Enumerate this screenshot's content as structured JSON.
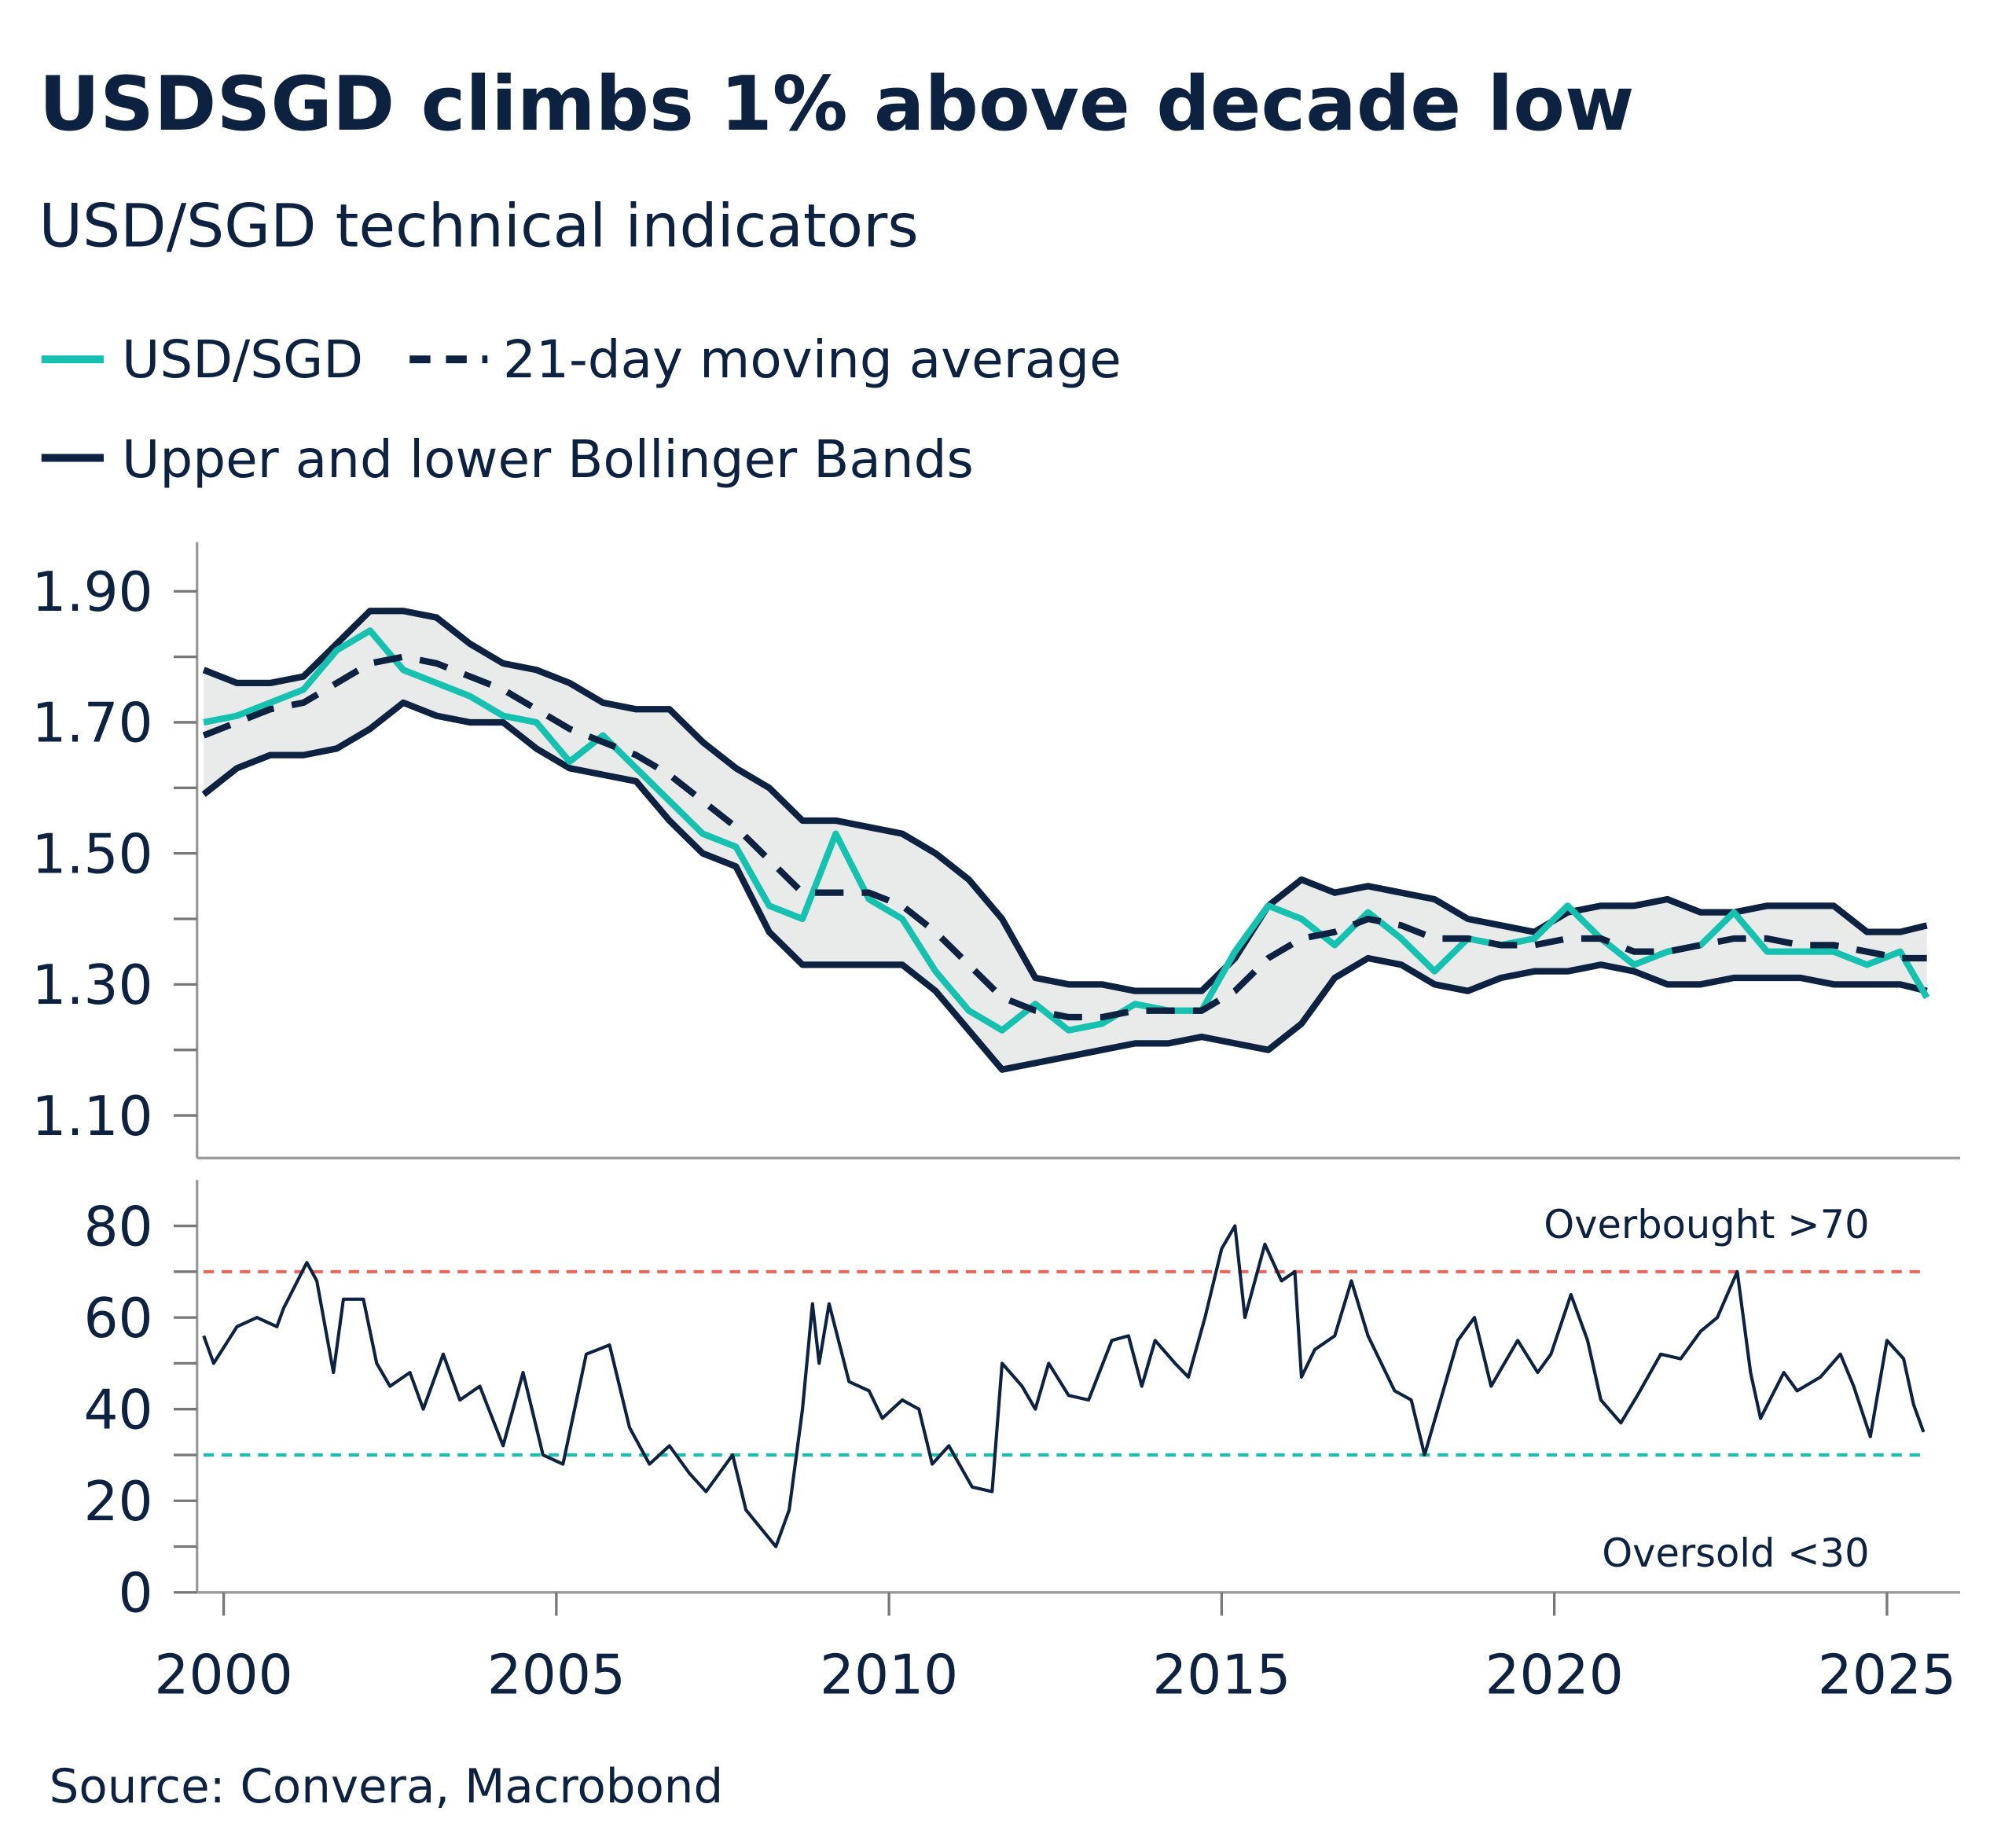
{
  "chart_data": [
    {
      "type": "line",
      "title": "USDSGD climbs 1% above decade low",
      "subtitle": "USD/SGD technical indicators",
      "source": "Source: Convera, Macrobond",
      "x": [
        1999.7,
        2000.2,
        2000.7,
        2001.2,
        2001.7,
        2002.2,
        2002.7,
        2003.2,
        2003.7,
        2004.2,
        2004.7,
        2005.2,
        2005.7,
        2006.2,
        2006.7,
        2007.2,
        2007.7,
        2008.2,
        2008.7,
        2009.2,
        2009.7,
        2010.2,
        2010.7,
        2011.2,
        2011.7,
        2012.2,
        2012.7,
        2013.2,
        2013.7,
        2014.2,
        2014.7,
        2015.2,
        2015.7,
        2016.2,
        2016.7,
        2017.2,
        2017.7,
        2018.2,
        2018.7,
        2019.2,
        2019.7,
        2020.2,
        2020.7,
        2021.2,
        2021.7,
        2022.2,
        2022.7,
        2023.2,
        2023.7,
        2024.2,
        2024.7,
        2025.2,
        2025.6
      ],
      "series": [
        {
          "name": "USD/SGD",
          "color": "#17c1b0",
          "dash": false,
          "values": [
            1.7,
            1.71,
            1.73,
            1.75,
            1.81,
            1.84,
            1.78,
            1.76,
            1.74,
            1.71,
            1.7,
            1.64,
            1.68,
            1.63,
            1.58,
            1.53,
            1.51,
            1.42,
            1.4,
            1.53,
            1.43,
            1.4,
            1.32,
            1.26,
            1.23,
            1.27,
            1.23,
            1.24,
            1.27,
            1.26,
            1.26,
            1.35,
            1.42,
            1.4,
            1.36,
            1.41,
            1.37,
            1.32,
            1.37,
            1.36,
            1.37,
            1.42,
            1.37,
            1.33,
            1.35,
            1.36,
            1.41,
            1.35,
            1.35,
            1.35,
            1.33,
            1.35,
            1.28
          ]
        },
        {
          "name": "21-day moving average",
          "color": "#0d2240",
          "dash": true,
          "values": [
            1.68,
            1.7,
            1.72,
            1.73,
            1.76,
            1.79,
            1.8,
            1.79,
            1.77,
            1.75,
            1.72,
            1.69,
            1.67,
            1.65,
            1.62,
            1.58,
            1.54,
            1.49,
            1.44,
            1.44,
            1.44,
            1.42,
            1.38,
            1.33,
            1.28,
            1.26,
            1.25,
            1.25,
            1.26,
            1.26,
            1.26,
            1.29,
            1.34,
            1.37,
            1.38,
            1.4,
            1.39,
            1.37,
            1.37,
            1.36,
            1.36,
            1.37,
            1.37,
            1.35,
            1.35,
            1.36,
            1.37,
            1.37,
            1.36,
            1.36,
            1.35,
            1.34,
            1.34
          ]
        }
      ],
      "bands": {
        "name": "Upper and lower Bollinger Bands",
        "color": "#0d2240",
        "fill": "#e9ebeb",
        "upper": [
          1.78,
          1.76,
          1.76,
          1.77,
          1.82,
          1.87,
          1.87,
          1.86,
          1.82,
          1.79,
          1.78,
          1.76,
          1.73,
          1.72,
          1.72,
          1.67,
          1.63,
          1.6,
          1.55,
          1.55,
          1.54,
          1.53,
          1.5,
          1.46,
          1.4,
          1.31,
          1.3,
          1.3,
          1.29,
          1.29,
          1.29,
          1.34,
          1.42,
          1.46,
          1.44,
          1.45,
          1.44,
          1.43,
          1.4,
          1.39,
          1.38,
          1.41,
          1.42,
          1.42,
          1.43,
          1.41,
          1.41,
          1.42,
          1.42,
          1.42,
          1.38,
          1.38,
          1.39
        ],
        "lower": [
          1.59,
          1.63,
          1.65,
          1.65,
          1.66,
          1.69,
          1.73,
          1.71,
          1.7,
          1.7,
          1.66,
          1.63,
          1.62,
          1.61,
          1.55,
          1.5,
          1.48,
          1.38,
          1.33,
          1.33,
          1.33,
          1.33,
          1.29,
          1.23,
          1.17,
          1.18,
          1.19,
          1.2,
          1.21,
          1.21,
          1.22,
          1.21,
          1.2,
          1.24,
          1.31,
          1.34,
          1.33,
          1.3,
          1.29,
          1.31,
          1.32,
          1.32,
          1.33,
          1.32,
          1.3,
          1.3,
          1.31,
          1.31,
          1.31,
          1.3,
          1.3,
          1.3,
          1.29
        ]
      },
      "xlim": [
        1999.6,
        2026.1
      ],
      "ylim": [
        1.035,
        1.975
      ],
      "yticks": [
        {
          "value": 1.1,
          "label": "1.10"
        },
        {
          "value": 1.3,
          "label": "1.30"
        },
        {
          "value": 1.5,
          "label": "1.50"
        },
        {
          "value": 1.7,
          "label": "1.70"
        },
        {
          "value": 1.9,
          "label": "1.90"
        }
      ],
      "yminorticks": [
        1.2,
        1.4,
        1.6,
        1.8
      ]
    },
    {
      "type": "line",
      "x": [
        1999.7,
        1999.85,
        2000.2,
        2000.5,
        2000.8,
        2000.9,
        2001.25,
        2001.4,
        2001.65,
        2001.8,
        2002.1,
        2002.3,
        2002.5,
        2002.8,
        2003.0,
        2003.3,
        2003.55,
        2003.85,
        2004.2,
        2004.5,
        2004.8,
        2005.1,
        2005.45,
        2005.8,
        2006.1,
        2006.4,
        2006.7,
        2007.0,
        2007.25,
        2007.65,
        2007.85,
        2008.3,
        2008.5,
        2008.7,
        2008.85,
        2008.95,
        2009.1,
        2009.4,
        2009.7,
        2009.9,
        2010.2,
        2010.45,
        2010.65,
        2010.9,
        2011.25,
        2011.55,
        2011.7,
        2012.0,
        2012.2,
        2012.4,
        2012.7,
        2013.0,
        2013.35,
        2013.6,
        2013.8,
        2014.0,
        2014.3,
        2014.5,
        2014.75,
        2015.0,
        2015.2,
        2015.35,
        2015.65,
        2015.9,
        2016.1,
        2016.2,
        2016.4,
        2016.7,
        2016.95,
        2017.2,
        2017.6,
        2017.85,
        2018.05,
        2018.25,
        2018.55,
        2018.8,
        2019.05,
        2019.45,
        2019.75,
        2019.95,
        2020.25,
        2020.5,
        2020.7,
        2021.0,
        2021.25,
        2021.6,
        2021.9,
        2022.2,
        2022.45,
        2022.75,
        2022.95,
        2023.1,
        2023.45,
        2023.65,
        2024.0,
        2024.3,
        2024.5,
        2024.75,
        2025.0,
        2025.25,
        2025.4,
        2025.55
      ],
      "series": [
        {
          "color": "#0d2240",
          "values": [
            56,
            50,
            58,
            60,
            58,
            62,
            72,
            68,
            48,
            64,
            64,
            50,
            45,
            48,
            40,
            52,
            42,
            45,
            32,
            48,
            30,
            28,
            52,
            54,
            36,
            28,
            32,
            26,
            22,
            30,
            18,
            10,
            18,
            40,
            63,
            50,
            63,
            46,
            44,
            38,
            42,
            40,
            28,
            32,
            23,
            22,
            50,
            45,
            40,
            50,
            43,
            42,
            55,
            56,
            45,
            55,
            50,
            47,
            60,
            75,
            80,
            60,
            76,
            68,
            70,
            47,
            53,
            56,
            68,
            56,
            44,
            42,
            30,
            40,
            55,
            60,
            45,
            55,
            48,
            52,
            65,
            55,
            42,
            37,
            43,
            52,
            51,
            57,
            60,
            70,
            48,
            38,
            48,
            44,
            47,
            52,
            45,
            34,
            55,
            51,
            41,
            35
          ]
        }
      ],
      "reference_lines": [
        {
          "value": 70,
          "label": "Overbought >70",
          "color": "#e8675a"
        },
        {
          "value": 30,
          "label": "Oversold <30",
          "color": "#17c1b0"
        }
      ],
      "xlim": [
        1999.6,
        2026.1
      ],
      "ylim": [
        0,
        90
      ],
      "xticks": [
        2000,
        2005,
        2010,
        2015,
        2020,
        2025
      ],
      "yticks": [
        0,
        20,
        40,
        60,
        80
      ],
      "yminorticks": [
        10,
        30,
        50,
        70
      ]
    }
  ]
}
